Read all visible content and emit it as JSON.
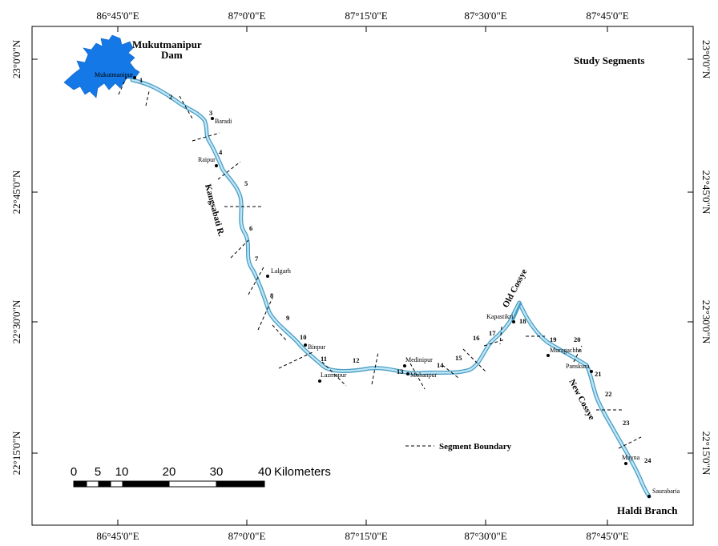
{
  "map": {
    "title": "Study Segments",
    "legend": {
      "label": "Segment Boundary"
    },
    "top_labels": [
      "86°45'0\"E",
      "87°0'0\"E",
      "87°15'0\"E",
      "87°30'0\"E",
      "87°45'0\"E"
    ],
    "bottom_labels": [
      "86°45'0\"E",
      "87°0'0\"E",
      "87°15'0\"E",
      "87°30'0\"E",
      "87°45'0\"E"
    ],
    "left_labels": [
      "23°0'0\"N",
      "22°45'0\"N",
      "22°30'0\"N",
      "22°15'0\"N"
    ],
    "right_labels": [
      "23°0'0\"N",
      "22°45'0\"N",
      "22°30'0\"N",
      "22°15'0\"N"
    ],
    "dam_label_1": "Mukutmanipur",
    "dam_label_2": "Dam",
    "river_name": "Kangsabati R.",
    "old_channel": "Old Cossye",
    "new_channel": "New Cossye",
    "branch": "Haldi Branch",
    "places": [
      "Mukutmanipur",
      "Baradi",
      "Raipur",
      "Lalgarh",
      "Binpur",
      "Lalgarh",
      "Medinipur",
      "Mohanpur",
      "Kapastikri",
      "Muragachha",
      "Panskura",
      "Mayna",
      "Saurabaria",
      "Lazmapur"
    ],
    "segments": [
      "1",
      "2",
      "3",
      "4",
      "5",
      "6",
      "7",
      "8",
      "9",
      "10",
      "11",
      "12",
      "13",
      "14",
      "15",
      "16",
      "17",
      "18",
      "19",
      "20",
      "21",
      "22",
      "23",
      "24"
    ],
    "scale": {
      "ticks": [
        "0",
        "5",
        "10",
        "20",
        "30",
        "40"
      ],
      "unit": "Kilometers"
    },
    "colors": {
      "reservoir": "#1478e6",
      "river": "#7ec8e8",
      "river_edge": "#4a9ec4"
    }
  }
}
